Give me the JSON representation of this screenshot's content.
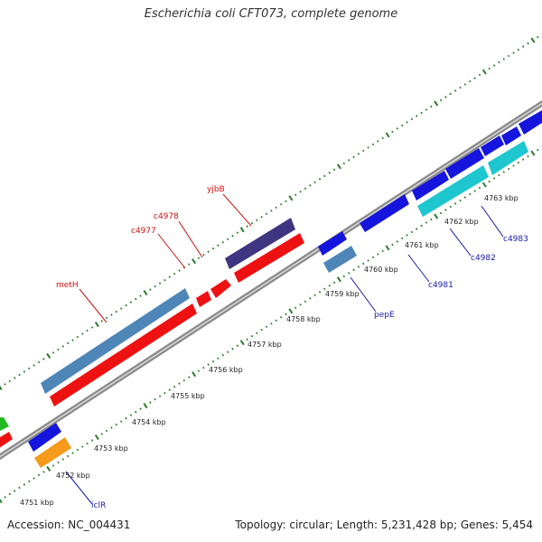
{
  "title": "Escherichia coli CFT073, complete genome",
  "footer": {
    "accession": "Accession: NC_004431",
    "summary": "Topology: circular; Length: 5,231,428 bp; Genes: 5,454"
  },
  "colors": {
    "backbone": "#8a8a8a",
    "tick": "#2a7a2a",
    "forward_label": "#cc1111",
    "reverse_label": "#1a1aa8"
  },
  "ticks": [
    "4751 kbp",
    "4752 kbp",
    "4753 kbp",
    "4754 kbp",
    "4755 kbp",
    "4756 kbp",
    "4757 kbp",
    "4758 kbp",
    "4759 kbp",
    "4760 kbp",
    "4761 kbp",
    "4762 kbp",
    "4763 kbp"
  ],
  "forward_labels": [
    "metH",
    "c4977",
    "c4978",
    "yjbB"
  ],
  "reverse_labels": [
    "iclR",
    "pepE",
    "c4981",
    "c4982",
    "c4983"
  ]
}
